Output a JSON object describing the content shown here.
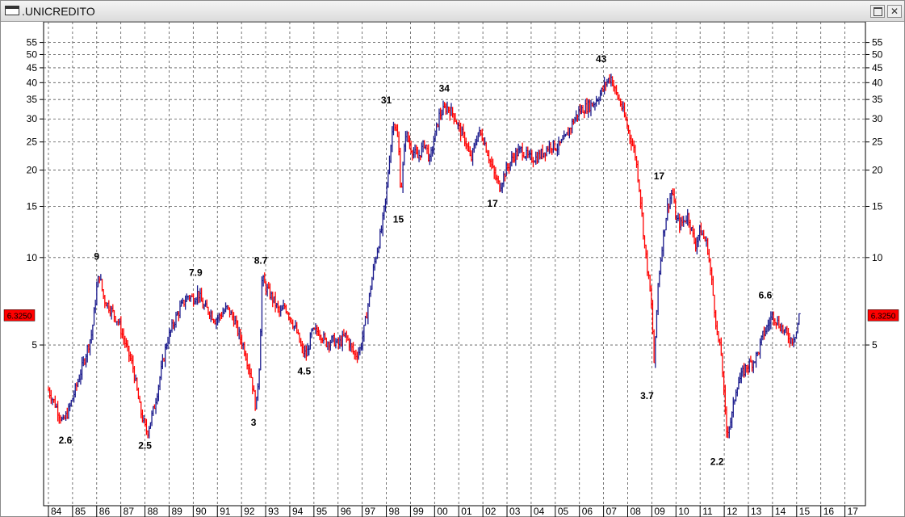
{
  "window": {
    "title": ".UNICREDITO"
  },
  "chart_data": {
    "type": "bar",
    "scale": "log",
    "ylim": [
      1.6,
      60
    ],
    "grid": true,
    "y_ticks": [
      5,
      10,
      15,
      20,
      25,
      30,
      35,
      40,
      45,
      50,
      55
    ],
    "x_labels": [
      "84",
      "85",
      "86",
      "87",
      "88",
      "89",
      "90",
      "91",
      "92",
      "93",
      "94",
      "95",
      "96",
      "97",
      "98",
      "99",
      "00",
      "01",
      "02",
      "03",
      "04",
      "05",
      "06",
      "07",
      "08",
      "09",
      "10",
      "11",
      "12",
      "13",
      "14",
      "15",
      "16",
      "17"
    ],
    "last_price": "6.3250",
    "up_color": "#1a1a8c",
    "down_color": "#ff0000",
    "series": [
      {
        "values": [
          [
            1984.0,
            3.5
          ],
          [
            1984.3,
            3.1
          ],
          [
            1984.6,
            2.7
          ],
          [
            1984.85,
            3.0
          ],
          [
            1985.2,
            3.7
          ],
          [
            1985.5,
            4.5
          ],
          [
            1985.8,
            5.5
          ],
          [
            1986.0,
            7.8
          ],
          [
            1986.1,
            8.8
          ],
          [
            1986.3,
            7.2
          ],
          [
            1986.6,
            6.6
          ],
          [
            1986.9,
            6.0
          ],
          [
            1987.2,
            5.0
          ],
          [
            1987.5,
            4.2
          ],
          [
            1987.8,
            3.0
          ],
          [
            1988.0,
            2.6
          ],
          [
            1988.1,
            2.5
          ],
          [
            1988.4,
            3.1
          ],
          [
            1988.7,
            4.2
          ],
          [
            1988.9,
            5.1
          ],
          [
            1989.2,
            6.0
          ],
          [
            1989.5,
            6.8
          ],
          [
            1989.8,
            7.4
          ],
          [
            1990.0,
            7.2
          ],
          [
            1990.2,
            7.6
          ],
          [
            1990.4,
            6.8
          ],
          [
            1990.7,
            6.5
          ],
          [
            1990.9,
            6.1
          ],
          [
            1991.1,
            6.3
          ],
          [
            1991.4,
            6.7
          ],
          [
            1991.7,
            6.1
          ],
          [
            1991.9,
            5.4
          ],
          [
            1992.1,
            4.9
          ],
          [
            1992.4,
            3.9
          ],
          [
            1992.6,
            3.0
          ],
          [
            1992.75,
            4.4
          ],
          [
            1992.85,
            8.5
          ],
          [
            1993.0,
            7.9
          ],
          [
            1993.3,
            7.2
          ],
          [
            1993.6,
            6.4
          ],
          [
            1993.8,
            6.8
          ],
          [
            1994.0,
            6.3
          ],
          [
            1994.3,
            5.5
          ],
          [
            1994.5,
            4.8
          ],
          [
            1994.7,
            4.6
          ],
          [
            1994.9,
            5.5
          ],
          [
            1995.2,
            5.6
          ],
          [
            1995.5,
            5.1
          ],
          [
            1995.8,
            5.2
          ],
          [
            1996.0,
            5.0
          ],
          [
            1996.3,
            5.4
          ],
          [
            1996.5,
            5.0
          ],
          [
            1996.7,
            4.6
          ],
          [
            1996.9,
            4.8
          ],
          [
            1997.1,
            5.8
          ],
          [
            1997.3,
            7.4
          ],
          [
            1997.5,
            9.5
          ],
          [
            1997.8,
            12.5
          ],
          [
            1998.0,
            16.5
          ],
          [
            1998.1,
            21
          ],
          [
            1998.3,
            30
          ],
          [
            1998.5,
            25
          ],
          [
            1998.6,
            16.5
          ],
          [
            1998.8,
            27
          ],
          [
            1999.0,
            24
          ],
          [
            1999.3,
            22
          ],
          [
            1999.6,
            25
          ],
          [
            1999.8,
            21.5
          ],
          [
            2000.0,
            26
          ],
          [
            2000.2,
            31
          ],
          [
            2000.5,
            33
          ],
          [
            2000.8,
            31
          ],
          [
            2001.0,
            28
          ],
          [
            2001.3,
            25
          ],
          [
            2001.5,
            21.5
          ],
          [
            2001.8,
            27
          ],
          [
            2002.0,
            26
          ],
          [
            2002.3,
            21.5
          ],
          [
            2002.5,
            19
          ],
          [
            2002.7,
            17.5
          ],
          [
            2002.9,
            19.5
          ],
          [
            2003.1,
            21
          ],
          [
            2003.3,
            22.5
          ],
          [
            2003.6,
            23.5
          ],
          [
            2003.9,
            22
          ],
          [
            2004.2,
            22
          ],
          [
            2004.5,
            23
          ],
          [
            2004.8,
            24.5
          ],
          [
            2005.1,
            24
          ],
          [
            2005.4,
            25.5
          ],
          [
            2005.7,
            29
          ],
          [
            2006.0,
            32
          ],
          [
            2006.3,
            33
          ],
          [
            2006.6,
            34
          ],
          [
            2006.9,
            37
          ],
          [
            2007.1,
            40
          ],
          [
            2007.3,
            42
          ],
          [
            2007.5,
            37
          ],
          [
            2007.7,
            34
          ],
          [
            2007.9,
            30
          ],
          [
            2008.1,
            26
          ],
          [
            2008.3,
            23
          ],
          [
            2008.5,
            17
          ],
          [
            2008.7,
            11
          ],
          [
            2008.9,
            8
          ],
          [
            2009.0,
            6.5
          ],
          [
            2009.1,
            4.2
          ],
          [
            2009.25,
            8
          ],
          [
            2009.45,
            11.5
          ],
          [
            2009.65,
            15
          ],
          [
            2009.85,
            17
          ],
          [
            2010.0,
            13.5
          ],
          [
            2010.2,
            13
          ],
          [
            2010.5,
            14
          ],
          [
            2010.8,
            11
          ],
          [
            2011.0,
            12.5
          ],
          [
            2011.3,
            11
          ],
          [
            2011.5,
            8
          ],
          [
            2011.7,
            5.5
          ],
          [
            2011.9,
            4.5
          ],
          [
            2012.0,
            3.2
          ],
          [
            2012.1,
            2.5
          ],
          [
            2012.3,
            2.8
          ],
          [
            2012.5,
            3.6
          ],
          [
            2012.7,
            3.9
          ],
          [
            2012.9,
            4.2
          ],
          [
            2013.2,
            4.4
          ],
          [
            2013.4,
            4.7
          ],
          [
            2013.6,
            5.4
          ],
          [
            2013.8,
            5.8
          ],
          [
            2014.0,
            6.4
          ],
          [
            2014.2,
            6.0
          ],
          [
            2014.4,
            5.7
          ],
          [
            2014.6,
            5.4
          ],
          [
            2014.8,
            5.2
          ],
          [
            2015.0,
            5.6
          ],
          [
            2015.1,
            6.3
          ]
        ]
      }
    ],
    "annotations": [
      {
        "x": 1984.7,
        "y": 2.6,
        "text": "2.6",
        "pos": "below"
      },
      {
        "x": 1986.0,
        "y": 9,
        "text": "9",
        "pos": "above"
      },
      {
        "x": 1988.0,
        "y": 2.5,
        "text": "2.5",
        "pos": "below"
      },
      {
        "x": 1990.1,
        "y": 7.9,
        "text": "7.9",
        "pos": "above"
      },
      {
        "x": 1992.5,
        "y": 3,
        "text": "3",
        "pos": "below"
      },
      {
        "x": 1992.8,
        "y": 8.7,
        "text": "8.7",
        "pos": "above"
      },
      {
        "x": 1994.6,
        "y": 4.5,
        "text": "4.5",
        "pos": "below"
      },
      {
        "x": 1998.0,
        "y": 31,
        "text": "31",
        "pos": "above"
      },
      {
        "x": 1998.5,
        "y": 15,
        "text": "15",
        "pos": "below"
      },
      {
        "x": 2000.4,
        "y": 34,
        "text": "34",
        "pos": "above"
      },
      {
        "x": 2002.4,
        "y": 17,
        "text": "17",
        "pos": "below"
      },
      {
        "x": 2006.9,
        "y": 43,
        "text": "43",
        "pos": "above"
      },
      {
        "x": 2008.8,
        "y": 3.7,
        "text": "3.7",
        "pos": "below"
      },
      {
        "x": 2009.3,
        "y": 17,
        "text": "17",
        "pos": "above"
      },
      {
        "x": 2011.7,
        "y": 2.2,
        "text": "2.2",
        "pos": "below"
      },
      {
        "x": 2013.7,
        "y": 6.6,
        "text": "6.6",
        "pos": "above"
      }
    ]
  }
}
